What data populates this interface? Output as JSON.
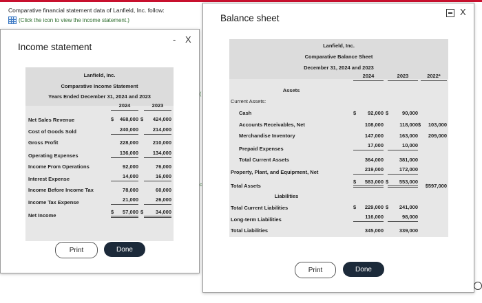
{
  "prompt": "Comparative financial statement data of Lanfield, Inc. follow:",
  "link": "(Click the icon to view the income statement.)",
  "income": {
    "window_title": "Income statement",
    "minimize": "-",
    "close": "X",
    "company": "Lanfield, Inc.",
    "statement": "Comparative Income Statement",
    "period": "Years Ended December 31, 2024 and 2023",
    "col_2024": "2024",
    "col_2023": "2023",
    "rows": [
      {
        "label": "Net Sales Revenue",
        "cur_sym": "$",
        "v2024": "468,000",
        "mid_sym": "$",
        "v2023": "424,000"
      },
      {
        "label": "Cost of Goods Sold",
        "v2024": "240,000",
        "v2023": "214,000"
      },
      {
        "label": "Gross Profit",
        "v2024": "228,000",
        "v2023": "210,000"
      },
      {
        "label": "Operating Expenses",
        "v2024": "136,000",
        "v2023": "134,000"
      },
      {
        "label": "Income From Operations",
        "v2024": "92,000",
        "v2023": "76,000"
      },
      {
        "label": "Interest Expense",
        "v2024": "14,000",
        "v2023": "16,000"
      },
      {
        "label": "Income Before Income Tax",
        "v2024": "78,000",
        "v2023": "60,000"
      },
      {
        "label": "Income Tax Expense",
        "v2024": "21,000",
        "v2023": "26,000"
      },
      {
        "label": "Net Income",
        "cur_sym": "$",
        "v2024": "57,000",
        "mid_sym": "$",
        "v2023": "34,000"
      }
    ],
    "print": "Print",
    "done": "Done"
  },
  "balance": {
    "window_title": "Balance sheet",
    "minimize": "-",
    "close": "X",
    "company": "Lanfield, Inc.",
    "statement": "Comparative Balance Sheet",
    "date": "December 31, 2024 and 2023",
    "col_2024": "2024",
    "col_2023": "2023",
    "col_2022": "2022*",
    "assets_heading": "Assets",
    "current_assets": "Current Assets:",
    "rows": [
      {
        "label": "Cash",
        "s1": "$",
        "v2024": "92,000",
        "s2": "$",
        "v2023": "90,000",
        "v2022": ""
      },
      {
        "label": "Accounts Receivables, Net",
        "v2024": "108,000",
        "v2023": "118,000",
        "s3": "$",
        "v2022": "103,000"
      },
      {
        "label": "Merchandise Inventory",
        "v2024": "147,000",
        "v2023": "163,000",
        "v2022": "209,000"
      },
      {
        "label": "Prepaid Expenses",
        "v2024": "17,000",
        "v2023": "10,000",
        "v2022": ""
      },
      {
        "label": "Total Current Assets",
        "v2024": "364,000",
        "v2023": "381,000",
        "v2022": ""
      },
      {
        "label": "Property, Plant, and Equipment, Net",
        "v2024": "219,000",
        "v2023": "172,000",
        "v2022": ""
      },
      {
        "label": "Total Assets",
        "s1": "$",
        "v2024": "583,000",
        "s2": "$",
        "v2023": "553,000",
        "v2022": "$597,000"
      }
    ],
    "liabilities_heading": "Liabilities",
    "liab_rows": [
      {
        "label": "Total Current Liabilities",
        "s1": "$",
        "v2024": "229,000",
        "s2": "$",
        "v2023": "241,000"
      },
      {
        "label": "Long-term Liabilities",
        "v2024": "116,000",
        "v2023": "98,000"
      },
      {
        "label": "Total Liabilities",
        "v2024": "345,000",
        "v2023": "339,000"
      }
    ],
    "print": "Print",
    "done": "Done"
  }
}
